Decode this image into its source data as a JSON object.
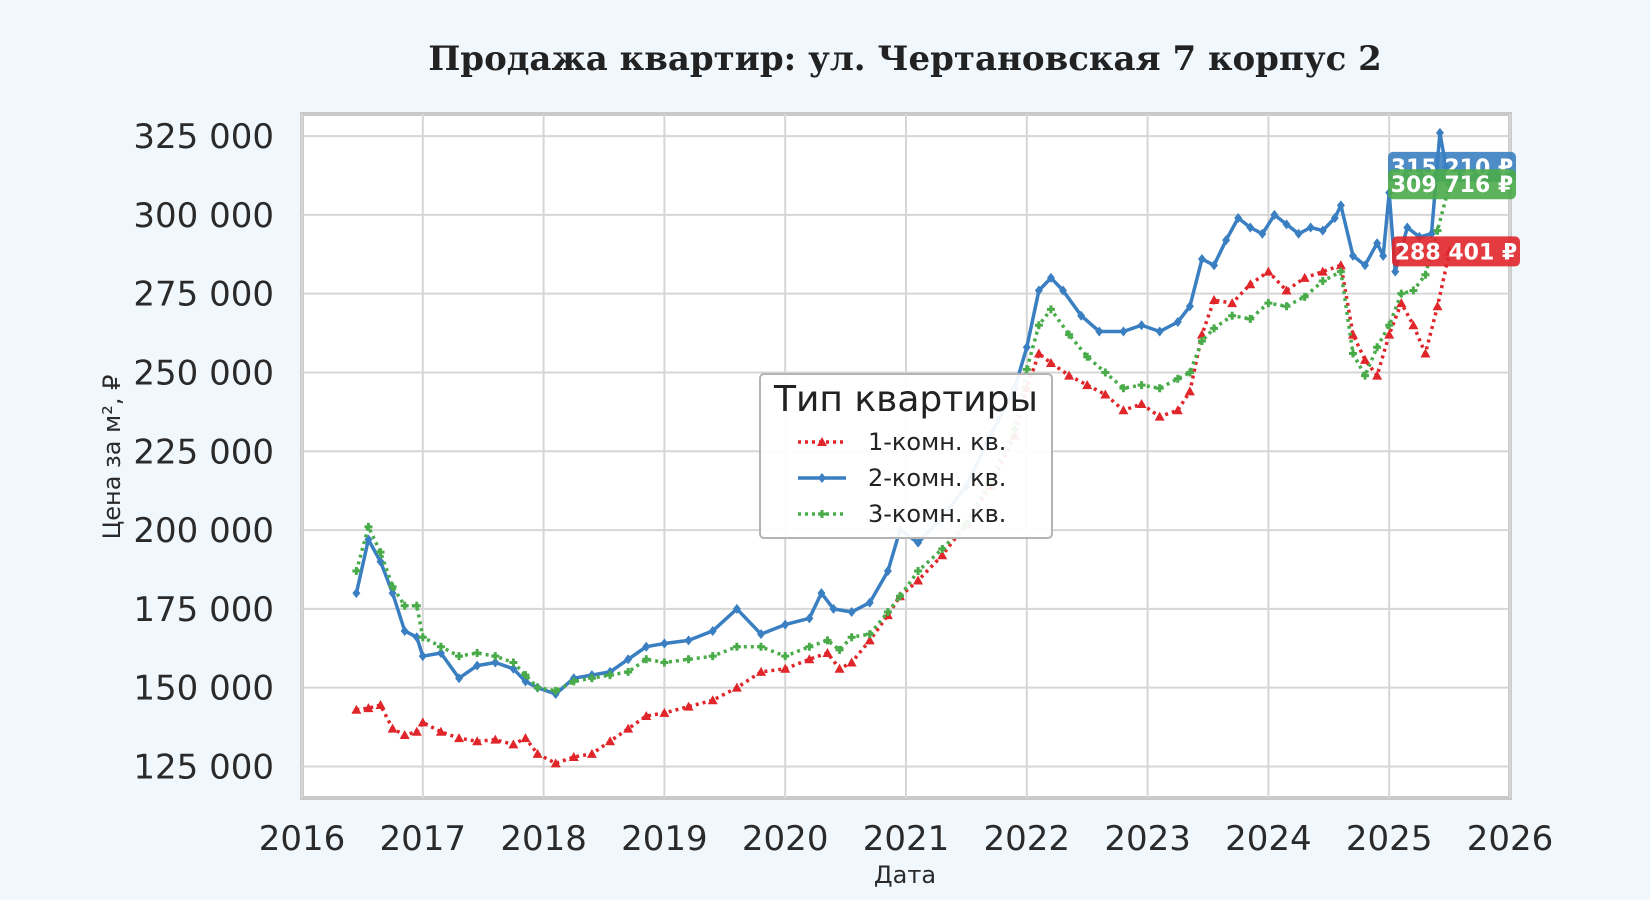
{
  "chart_data": {
    "type": "line",
    "title": "Продажа квартир: ул. Чертановская 7 корпус 2",
    "xlabel": "Дата",
    "ylabel": "Цена за м², ₽",
    "xlim": [
      2016,
      2026
    ],
    "ylim": [
      115000,
      332000
    ],
    "x_ticks": [
      "2016",
      "2017",
      "2018",
      "2019",
      "2020",
      "2021",
      "2022",
      "2023",
      "2024",
      "2025",
      "2026"
    ],
    "y_ticks": [
      {
        "value": 125000,
        "label": "125 000"
      },
      {
        "value": 150000,
        "label": "150 000"
      },
      {
        "value": 175000,
        "label": "175 000"
      },
      {
        "value": 200000,
        "label": "200 000"
      },
      {
        "value": 225000,
        "label": "225 000"
      },
      {
        "value": 250000,
        "label": "250 000"
      },
      {
        "value": 275000,
        "label": "275 000"
      },
      {
        "value": 300000,
        "label": "300 000"
      },
      {
        "value": 325000,
        "label": "325 000"
      }
    ],
    "grid": true,
    "legend": {
      "title": "Тип квартиры",
      "placement": "center"
    },
    "series": [
      {
        "name": "1-комн. кв.",
        "color": "#e0262a",
        "style": "dotted-triangle",
        "last_value_label": "288 401 ₽",
        "points": [
          [
            2016.45,
            143000
          ],
          [
            2016.55,
            143500
          ],
          [
            2016.65,
            144500
          ],
          [
            2016.75,
            137000
          ],
          [
            2016.85,
            135000
          ],
          [
            2016.95,
            136000
          ],
          [
            2017.0,
            139000
          ],
          [
            2017.15,
            136000
          ],
          [
            2017.3,
            134000
          ],
          [
            2017.45,
            133000
          ],
          [
            2017.6,
            133500
          ],
          [
            2017.75,
            132000
          ],
          [
            2017.85,
            134000
          ],
          [
            2017.95,
            129000
          ],
          [
            2018.1,
            126000
          ],
          [
            2018.25,
            128000
          ],
          [
            2018.4,
            129000
          ],
          [
            2018.55,
            133000
          ],
          [
            2018.7,
            137000
          ],
          [
            2018.85,
            141000
          ],
          [
            2019.0,
            142000
          ],
          [
            2019.2,
            144000
          ],
          [
            2019.4,
            146000
          ],
          [
            2019.6,
            150000
          ],
          [
            2019.8,
            155000
          ],
          [
            2020.0,
            156000
          ],
          [
            2020.2,
            159000
          ],
          [
            2020.35,
            161000
          ],
          [
            2020.45,
            156000
          ],
          [
            2020.55,
            158000
          ],
          [
            2020.7,
            165000
          ],
          [
            2020.85,
            173000
          ],
          [
            2020.95,
            179000
          ],
          [
            2021.1,
            184000
          ],
          [
            2021.3,
            192000
          ],
          [
            2021.5,
            202000
          ],
          [
            2021.7,
            214000
          ],
          [
            2021.9,
            230000
          ],
          [
            2022.0,
            245000
          ],
          [
            2022.1,
            256000
          ],
          [
            2022.2,
            253000
          ],
          [
            2022.35,
            249000
          ],
          [
            2022.5,
            246000
          ],
          [
            2022.65,
            243000
          ],
          [
            2022.8,
            238000
          ],
          [
            2022.95,
            240000
          ],
          [
            2023.1,
            236000
          ],
          [
            2023.25,
            238000
          ],
          [
            2023.35,
            244000
          ],
          [
            2023.45,
            262000
          ],
          [
            2023.55,
            273000
          ],
          [
            2023.7,
            272000
          ],
          [
            2023.85,
            278000
          ],
          [
            2024.0,
            282000
          ],
          [
            2024.15,
            276000
          ],
          [
            2024.3,
            280000
          ],
          [
            2024.45,
            282000
          ],
          [
            2024.6,
            284000
          ],
          [
            2024.7,
            262000
          ],
          [
            2024.8,
            254000
          ],
          [
            2024.9,
            249000
          ],
          [
            2025.0,
            262000
          ],
          [
            2025.1,
            272000
          ],
          [
            2025.2,
            265000
          ],
          [
            2025.3,
            256000
          ],
          [
            2025.4,
            271000
          ],
          [
            2025.5,
            288401
          ]
        ]
      },
      {
        "name": "2-комн. кв.",
        "color": "#3a7fc1",
        "style": "solid-diamond",
        "last_value_label": "315 210 ₽",
        "points": [
          [
            2016.45,
            180000
          ],
          [
            2016.55,
            197000
          ],
          [
            2016.65,
            190000
          ],
          [
            2016.75,
            180000
          ],
          [
            2016.85,
            168000
          ],
          [
            2016.95,
            166000
          ],
          [
            2017.0,
            160000
          ],
          [
            2017.15,
            161000
          ],
          [
            2017.3,
            153000
          ],
          [
            2017.45,
            157000
          ],
          [
            2017.6,
            158000
          ],
          [
            2017.75,
            156000
          ],
          [
            2017.85,
            152000
          ],
          [
            2017.95,
            150000
          ],
          [
            2018.1,
            148000
          ],
          [
            2018.25,
            153000
          ],
          [
            2018.4,
            154000
          ],
          [
            2018.55,
            155000
          ],
          [
            2018.7,
            159000
          ],
          [
            2018.85,
            163000
          ],
          [
            2019.0,
            164000
          ],
          [
            2019.2,
            165000
          ],
          [
            2019.4,
            168000
          ],
          [
            2019.6,
            175000
          ],
          [
            2019.8,
            167000
          ],
          [
            2020.0,
            170000
          ],
          [
            2020.2,
            172000
          ],
          [
            2020.3,
            180000
          ],
          [
            2020.4,
            175000
          ],
          [
            2020.55,
            174000
          ],
          [
            2020.7,
            177000
          ],
          [
            2020.85,
            187000
          ],
          [
            2020.95,
            200000
          ],
          [
            2021.1,
            196000
          ],
          [
            2021.3,
            204000
          ],
          [
            2021.5,
            214000
          ],
          [
            2021.7,
            230000
          ],
          [
            2021.9,
            245000
          ],
          [
            2022.0,
            258000
          ],
          [
            2022.1,
            276000
          ],
          [
            2022.2,
            280000
          ],
          [
            2022.3,
            276000
          ],
          [
            2022.45,
            268000
          ],
          [
            2022.6,
            263000
          ],
          [
            2022.8,
            263000
          ],
          [
            2022.95,
            265000
          ],
          [
            2023.1,
            263000
          ],
          [
            2023.25,
            266000
          ],
          [
            2023.35,
            271000
          ],
          [
            2023.45,
            286000
          ],
          [
            2023.55,
            284000
          ],
          [
            2023.65,
            292000
          ],
          [
            2023.75,
            299000
          ],
          [
            2023.85,
            296000
          ],
          [
            2023.95,
            294000
          ],
          [
            2024.05,
            300000
          ],
          [
            2024.15,
            297000
          ],
          [
            2024.25,
            294000
          ],
          [
            2024.35,
            296000
          ],
          [
            2024.45,
            295000
          ],
          [
            2024.55,
            299000
          ],
          [
            2024.6,
            303000
          ],
          [
            2024.7,
            287000
          ],
          [
            2024.8,
            284000
          ],
          [
            2024.9,
            291000
          ],
          [
            2024.95,
            287000
          ],
          [
            2025.0,
            307000
          ],
          [
            2025.05,
            282000
          ],
          [
            2025.15,
            296000
          ],
          [
            2025.25,
            293000
          ],
          [
            2025.35,
            294000
          ],
          [
            2025.42,
            326000
          ],
          [
            2025.47,
            315210
          ]
        ]
      },
      {
        "name": "3-комн. кв.",
        "color": "#4aab4a",
        "style": "dotted-plus",
        "last_value_label": "309 716 ₽",
        "points": [
          [
            2016.45,
            187000
          ],
          [
            2016.55,
            201000
          ],
          [
            2016.65,
            193000
          ],
          [
            2016.75,
            182000
          ],
          [
            2016.85,
            176000
          ],
          [
            2016.95,
            176000
          ],
          [
            2017.0,
            166000
          ],
          [
            2017.15,
            163000
          ],
          [
            2017.3,
            160000
          ],
          [
            2017.45,
            161000
          ],
          [
            2017.6,
            160000
          ],
          [
            2017.75,
            158000
          ],
          [
            2017.85,
            154000
          ],
          [
            2017.95,
            150000
          ],
          [
            2018.1,
            149000
          ],
          [
            2018.25,
            152000
          ],
          [
            2018.4,
            153000
          ],
          [
            2018.55,
            154000
          ],
          [
            2018.7,
            155000
          ],
          [
            2018.85,
            159000
          ],
          [
            2019.0,
            158000
          ],
          [
            2019.2,
            159000
          ],
          [
            2019.4,
            160000
          ],
          [
            2019.6,
            163000
          ],
          [
            2019.8,
            163000
          ],
          [
            2020.0,
            160000
          ],
          [
            2020.2,
            163000
          ],
          [
            2020.35,
            165000
          ],
          [
            2020.45,
            162000
          ],
          [
            2020.55,
            166000
          ],
          [
            2020.7,
            167000
          ],
          [
            2020.85,
            174000
          ],
          [
            2020.95,
            179000
          ],
          [
            2021.1,
            187000
          ],
          [
            2021.3,
            194000
          ],
          [
            2021.5,
            202000
          ],
          [
            2021.7,
            216000
          ],
          [
            2021.9,
            232000
          ],
          [
            2022.0,
            251000
          ],
          [
            2022.1,
            265000
          ],
          [
            2022.2,
            270000
          ],
          [
            2022.35,
            262000
          ],
          [
            2022.5,
            255000
          ],
          [
            2022.65,
            250000
          ],
          [
            2022.8,
            245000
          ],
          [
            2022.95,
            246000
          ],
          [
            2023.1,
            245000
          ],
          [
            2023.25,
            248000
          ],
          [
            2023.35,
            250000
          ],
          [
            2023.45,
            260000
          ],
          [
            2023.55,
            264000
          ],
          [
            2023.7,
            268000
          ],
          [
            2023.85,
            267000
          ],
          [
            2024.0,
            272000
          ],
          [
            2024.15,
            271000
          ],
          [
            2024.3,
            274000
          ],
          [
            2024.45,
            279000
          ],
          [
            2024.6,
            282000
          ],
          [
            2024.7,
            256000
          ],
          [
            2024.8,
            249000
          ],
          [
            2024.9,
            258000
          ],
          [
            2025.0,
            265000
          ],
          [
            2025.1,
            275000
          ],
          [
            2025.2,
            276000
          ],
          [
            2025.3,
            281000
          ],
          [
            2025.4,
            295000
          ],
          [
            2025.5,
            309716
          ]
        ]
      }
    ]
  }
}
